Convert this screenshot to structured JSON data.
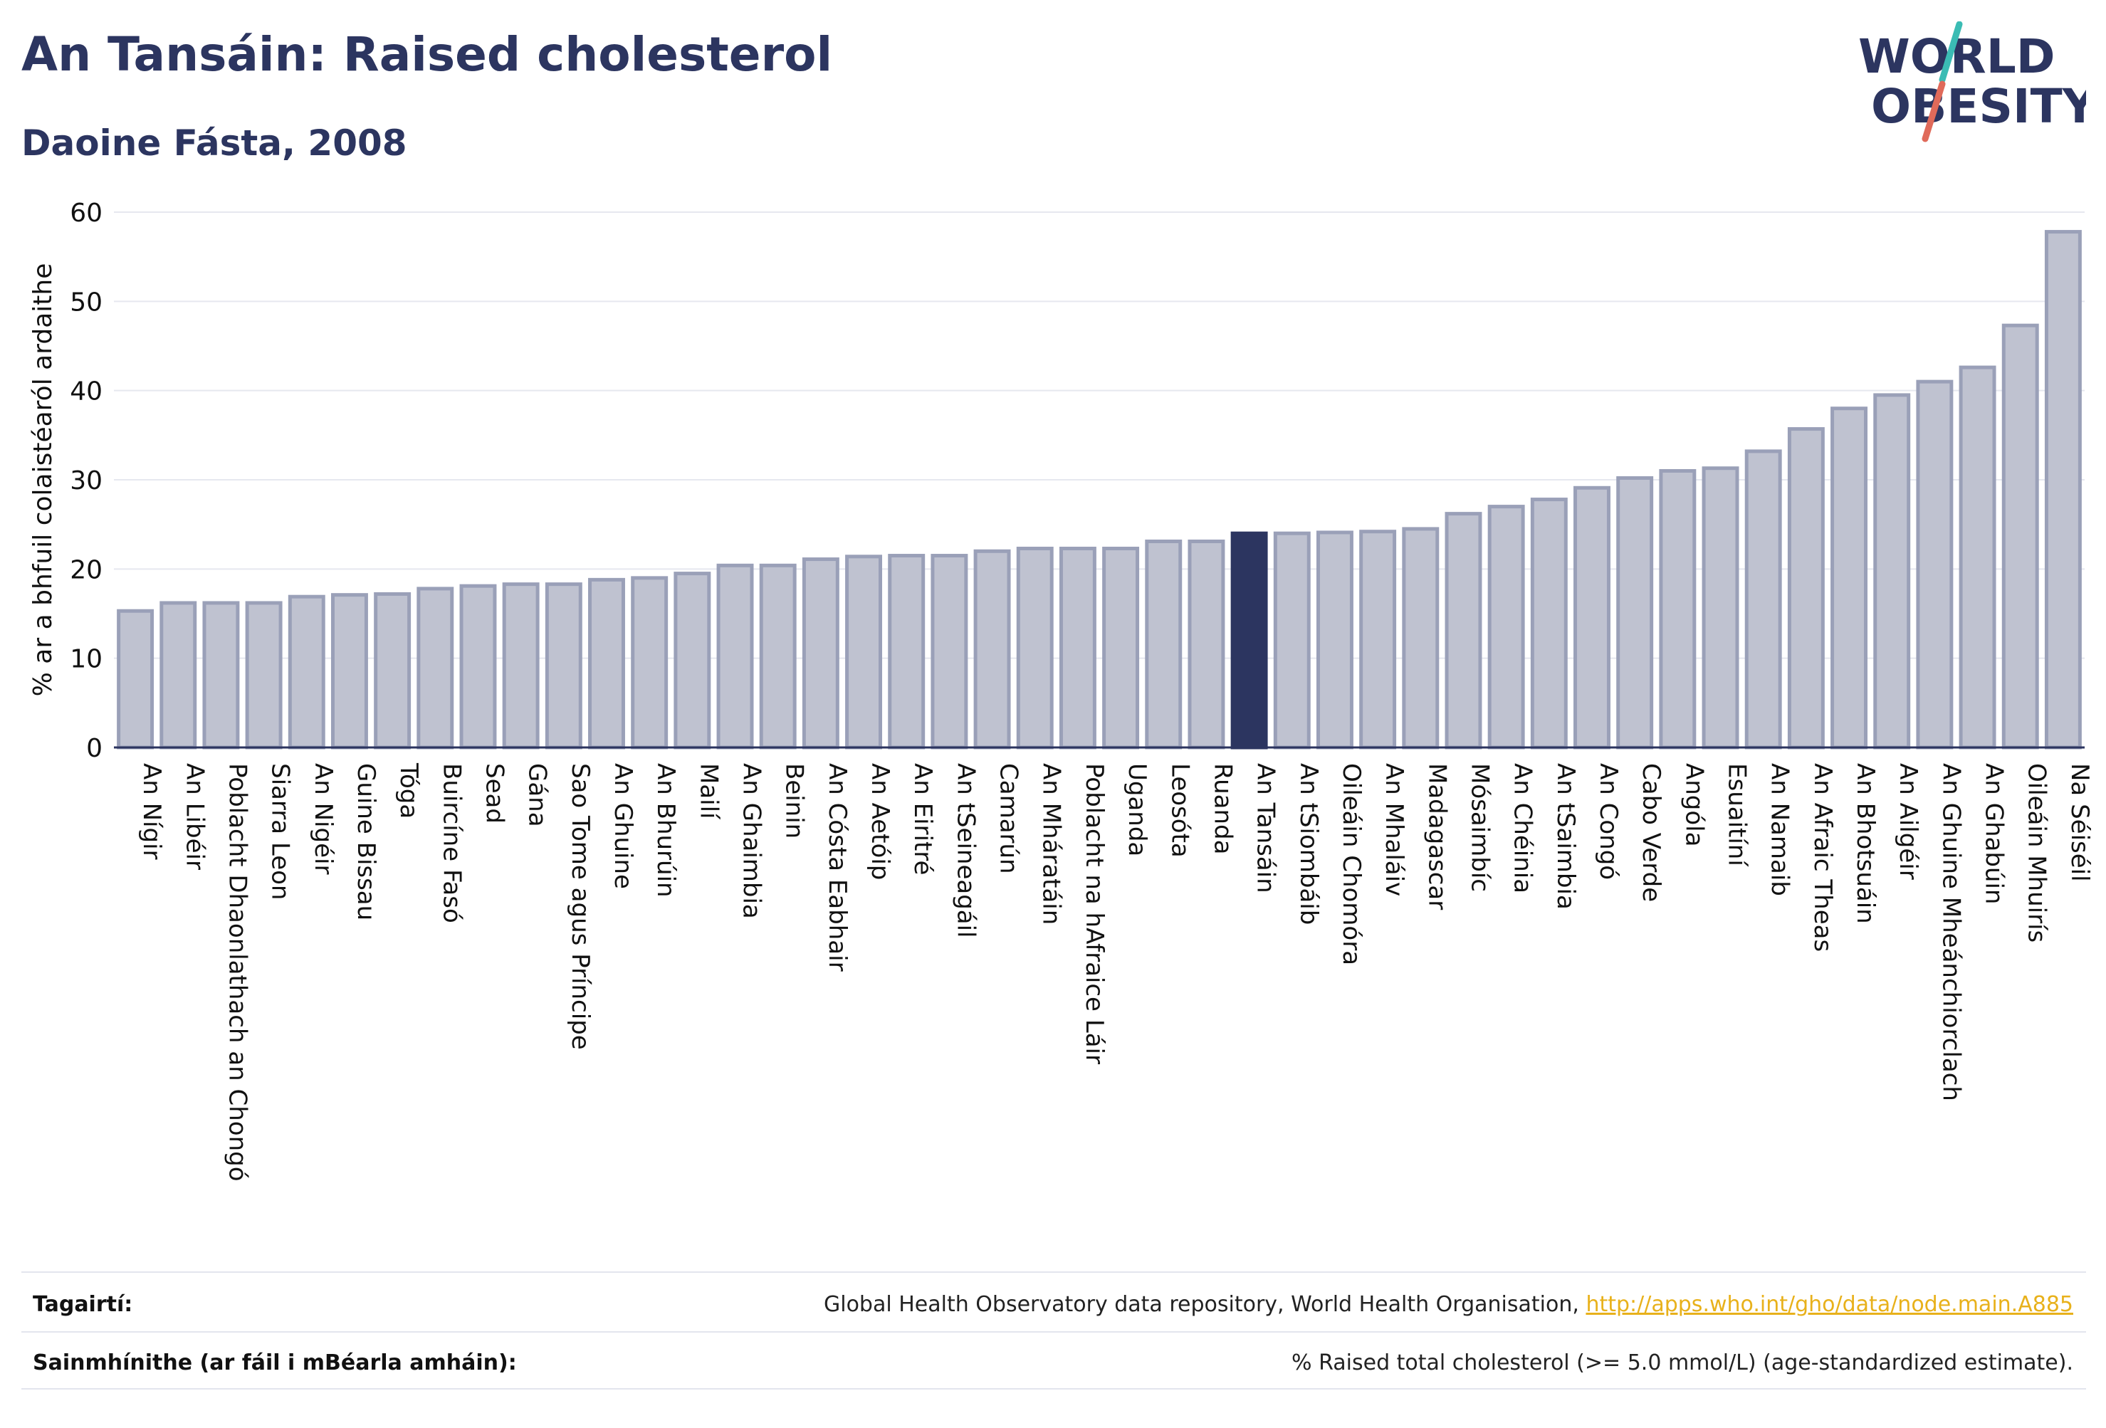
{
  "header": {
    "title": "An Tansáin: Raised cholesterol",
    "subtitle": "Daoine Fásta, 2008"
  },
  "logo": {
    "line1": "WORLD",
    "line2": "OBESITY"
  },
  "colors": {
    "bar": "#bfc2d0",
    "bar_border": "#9aa0b8",
    "highlight": "#2c3560",
    "title": "#2c3560",
    "link": "#e8b11b"
  },
  "chart_data": {
    "type": "bar",
    "ylabel": "% ar a bhfuil colaistéaról ardaithe",
    "ylim": [
      0,
      60
    ],
    "yticks": [
      0,
      10,
      20,
      30,
      40,
      50,
      60
    ],
    "grid": true,
    "highlight_category": "An Tansáin",
    "categories": [
      "An Nígir",
      "An Libéir",
      "Poblacht Dhaonlathach an Chongó",
      "Siarra Leon",
      "An Nigéir",
      "Guine Bissau",
      "Tóga",
      "Buircíne Fasó",
      "Sead",
      "Gána",
      "Sao Tome agus Príncipe",
      "An Ghuine",
      "An Bhurúin",
      "Mailí",
      "An Ghaimbia",
      "Beinin",
      "An Cósta Eabhair",
      "An Aetóip",
      "An Eiritré",
      "An tSeineagáil",
      "Camarún",
      "An Mháratáin",
      "Poblacht na hAfraice Láir",
      "Uganda",
      "Leosóta",
      "Ruanda",
      "An Tansáin",
      "An tSiombáib",
      "Oileáin Chomóra",
      "An Mhaláiv",
      "Madagascar",
      "Mósaimbíc",
      "An Chéinia",
      "An tSaimbia",
      "An Congó",
      "Cabo Verde",
      "Angóla",
      "Esuaitíní",
      "An Namaib",
      "An Afraic Theas",
      "An Bhotsuáin",
      "An Ailgéir",
      "An Ghuine Mheánchiorclach",
      "An Ghabúin",
      "Oileáin Mhuirís",
      "Na Séiséil"
    ],
    "values": [
      15.3,
      16.2,
      16.2,
      16.2,
      16.9,
      17.1,
      17.2,
      17.8,
      18.1,
      18.3,
      18.3,
      18.8,
      19.0,
      19.5,
      20.4,
      20.4,
      21.1,
      21.4,
      21.5,
      21.5,
      22.0,
      22.3,
      22.3,
      22.3,
      23.1,
      23.1,
      24.0,
      24.0,
      24.1,
      24.2,
      24.5,
      26.2,
      27.0,
      27.8,
      29.1,
      30.2,
      31.0,
      31.3,
      33.2,
      35.7,
      38.0,
      39.5,
      41.0,
      42.6,
      47.3,
      57.8
    ]
  },
  "footer": {
    "references_label": "Tagairtí:",
    "references_text": "Global Health Observatory data repository, World Health Organisation,",
    "references_link": "http://apps.who.int/gho/data/node.main.A885",
    "definitions_label": "Sainmhínithe (ar fáil i mBéarla amháin):",
    "definitions_text": "% Raised total cholesterol (>= 5.0 mmol/L) (age-standardized estimate)."
  }
}
